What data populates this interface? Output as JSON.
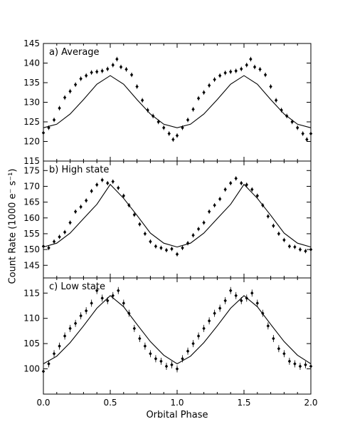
{
  "figure": {
    "xlabel": "Orbital Phase",
    "ylabel": "Count Rate (1000 e⁻ s⁻¹)"
  },
  "chart_data": [
    {
      "type": "scatter",
      "title": "a) Average",
      "xlim": [
        0.0,
        2.0
      ],
      "ylim": [
        115,
        145
      ],
      "x_ticks": [
        "0.0",
        "0.5",
        "1.0",
        "1.5",
        "2.0"
      ],
      "y_ticks": [
        115,
        120,
        125,
        130,
        135,
        140,
        145
      ],
      "series": [
        {
          "style": "points-with-errorbars",
          "x": [
            0.0,
            0.04,
            0.08,
            0.12,
            0.16,
            0.2,
            0.24,
            0.28,
            0.32,
            0.36,
            0.4,
            0.44,
            0.48,
            0.52,
            0.55,
            0.58,
            0.62,
            0.66,
            0.7,
            0.74,
            0.78,
            0.82,
            0.86,
            0.9,
            0.94,
            0.97,
            1.0,
            1.04,
            1.08,
            1.12,
            1.16,
            1.2,
            1.24,
            1.28,
            1.32,
            1.36,
            1.4,
            1.44,
            1.48,
            1.52,
            1.55,
            1.58,
            1.62,
            1.66,
            1.7,
            1.74,
            1.78,
            1.82,
            1.86,
            1.9,
            1.94,
            1.97,
            2.0
          ],
          "y": [
            122.2,
            123.5,
            125.5,
            128.5,
            131.2,
            132.8,
            134.5,
            136.0,
            136.8,
            137.6,
            137.8,
            138.0,
            138.5,
            139.5,
            141.0,
            139.0,
            138.4,
            137.0,
            134.0,
            130.5,
            128.0,
            126.5,
            125.0,
            123.5,
            122.0,
            120.5,
            121.5,
            123.5,
            125.5,
            128.2,
            131.0,
            132.5,
            134.3,
            135.8,
            136.8,
            137.5,
            137.8,
            138.0,
            138.5,
            139.5,
            141.0,
            139.0,
            138.4,
            137.0,
            134.0,
            130.5,
            128.0,
            126.5,
            125.0,
            123.5,
            122.0,
            120.5,
            122.0
          ],
          "yerr": 0.6
        },
        {
          "style": "solid-line",
          "x": [
            0.0,
            0.1,
            0.2,
            0.3,
            0.4,
            0.5,
            0.6,
            0.7,
            0.8,
            0.9,
            1.0,
            1.1,
            1.2,
            1.3,
            1.4,
            1.5,
            1.6,
            1.7,
            1.8,
            1.9,
            2.0
          ],
          "y": [
            123.5,
            124.4,
            127.0,
            130.7,
            134.6,
            136.8,
            134.6,
            130.7,
            127.0,
            124.4,
            123.5,
            124.4,
            127.0,
            130.7,
            134.6,
            136.8,
            134.6,
            130.7,
            127.0,
            124.4,
            123.5
          ]
        }
      ]
    },
    {
      "type": "scatter",
      "title": "b) High state",
      "xlim": [
        0.0,
        2.0
      ],
      "ylim": [
        141,
        178
      ],
      "y_ticks": [
        145,
        150,
        155,
        160,
        165,
        170,
        175
      ],
      "series": [
        {
          "style": "points-with-errorbars",
          "x": [
            0.0,
            0.04,
            0.08,
            0.12,
            0.16,
            0.2,
            0.24,
            0.28,
            0.32,
            0.36,
            0.4,
            0.44,
            0.48,
            0.52,
            0.56,
            0.6,
            0.64,
            0.68,
            0.72,
            0.76,
            0.8,
            0.84,
            0.88,
            0.92,
            0.96,
            1.0,
            1.04,
            1.08,
            1.12,
            1.16,
            1.2,
            1.24,
            1.28,
            1.32,
            1.36,
            1.4,
            1.44,
            1.48,
            1.52,
            1.56,
            1.6,
            1.64,
            1.68,
            1.72,
            1.76,
            1.8,
            1.84,
            1.88,
            1.92,
            1.96,
            2.0
          ],
          "y": [
            151.0,
            150.5,
            152.5,
            154.0,
            155.5,
            158.5,
            162.0,
            163.5,
            165.5,
            168.5,
            170.5,
            172.0,
            171.0,
            171.5,
            169.5,
            167.0,
            164.0,
            161.0,
            158.0,
            155.0,
            152.5,
            151.0,
            150.5,
            149.8,
            150.2,
            148.5,
            150.5,
            152.0,
            154.5,
            156.5,
            158.5,
            162.0,
            164.0,
            166.0,
            169.0,
            171.0,
            172.5,
            171.0,
            170.5,
            169.0,
            167.0,
            164.0,
            160.5,
            157.5,
            155.0,
            153.0,
            151.0,
            150.8,
            150.0,
            149.5,
            150.0
          ],
          "yerr": 0.7
        },
        {
          "style": "solid-line",
          "x": [
            0.0,
            0.1,
            0.2,
            0.3,
            0.4,
            0.5,
            0.6,
            0.7,
            0.8,
            0.9,
            1.0,
            1.1,
            1.2,
            1.3,
            1.4,
            1.5,
            1.6,
            1.7,
            1.8,
            1.9,
            2.0
          ],
          "y": [
            150.8,
            152.0,
            155.2,
            159.8,
            164.3,
            170.6,
            166.2,
            160.8,
            155.2,
            152.0,
            150.8,
            152.0,
            155.2,
            159.8,
            164.3,
            170.6,
            166.2,
            160.8,
            155.2,
            152.0,
            150.8
          ]
        }
      ]
    },
    {
      "type": "scatter",
      "title": "c) Low state",
      "xlim": [
        0.0,
        2.0
      ],
      "ylim": [
        95,
        118
      ],
      "x_ticks": [
        "0.0",
        "0.5",
        "1.0",
        "1.5",
        "2.0"
      ],
      "y_ticks": [
        100,
        105,
        110,
        115
      ],
      "series": [
        {
          "style": "points-with-errorbars",
          "x": [
            0.0,
            0.04,
            0.08,
            0.12,
            0.16,
            0.2,
            0.24,
            0.28,
            0.32,
            0.36,
            0.4,
            0.44,
            0.48,
            0.52,
            0.56,
            0.6,
            0.64,
            0.68,
            0.72,
            0.76,
            0.8,
            0.84,
            0.88,
            0.92,
            0.96,
            1.0,
            1.04,
            1.08,
            1.12,
            1.16,
            1.2,
            1.24,
            1.28,
            1.32,
            1.36,
            1.4,
            1.44,
            1.48,
            1.52,
            1.56,
            1.6,
            1.64,
            1.68,
            1.72,
            1.76,
            1.8,
            1.84,
            1.88,
            1.92,
            1.96,
            2.0
          ],
          "y": [
            99.5,
            101.0,
            103.0,
            104.5,
            106.5,
            108.0,
            109.0,
            110.5,
            111.5,
            113.0,
            115.5,
            114.0,
            113.5,
            114.5,
            115.5,
            113.0,
            111.0,
            108.0,
            106.0,
            104.5,
            103.0,
            102.0,
            101.5,
            100.5,
            100.8,
            100.0,
            102.0,
            103.5,
            105.0,
            106.5,
            108.0,
            109.5,
            111.0,
            112.0,
            113.5,
            115.5,
            114.5,
            113.5,
            114.0,
            115.0,
            113.0,
            111.0,
            108.5,
            106.0,
            104.0,
            103.0,
            101.5,
            101.0,
            100.5,
            100.8,
            100.5
          ],
          "yerr": 0.7
        },
        {
          "style": "solid-line",
          "x": [
            0.0,
            0.1,
            0.2,
            0.3,
            0.4,
            0.5,
            0.6,
            0.7,
            0.8,
            0.9,
            1.0,
            1.1,
            1.2,
            1.3,
            1.4,
            1.5,
            1.6,
            1.7,
            1.8,
            1.9,
            2.0
          ],
          "y": [
            101.0,
            102.5,
            105.2,
            108.5,
            112.0,
            114.5,
            112.3,
            108.8,
            105.4,
            102.7,
            101.0,
            102.5,
            105.2,
            108.5,
            112.0,
            114.5,
            112.3,
            108.8,
            105.4,
            102.7,
            101.0
          ]
        }
      ]
    }
  ]
}
